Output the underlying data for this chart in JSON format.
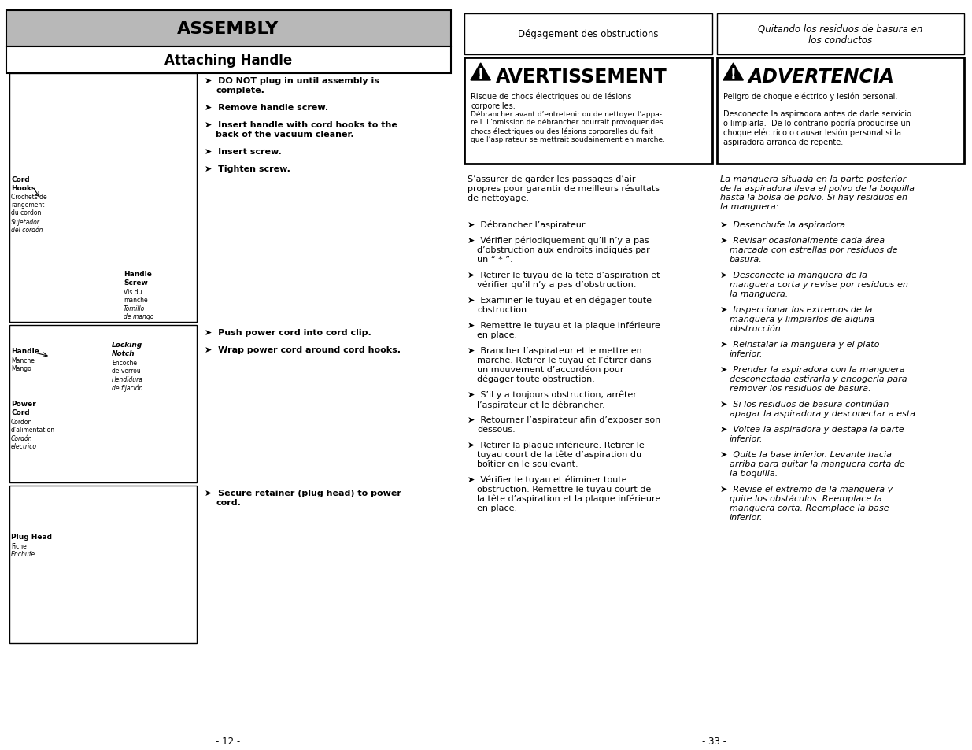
{
  "assembly_header_text": "ASSEMBLY",
  "assembly_header_bg": "#b8b8b8",
  "attaching_header_text": "Attaching Handle",
  "right_header_fr": "Dégagement des obstructions",
  "right_header_es": "Quitando los residuos de basura en\nlos conductos",
  "warning_fr_title": "AVERTISSEMENT",
  "warning_es_title": "ADVERTENCIA",
  "warning_fr_body1": "Risque de chocs électriques ou de lésions\ncorporelles.",
  "warning_fr_body2": "Débrancher avant d’entretenir ou de nettoyer l’appa-\nreil. L’omission de débrancher pourrait provoquer des\nchocs électriques ou des lésions corporelles du fait\nque l’aspirateur se mettrait soudainement en marche.",
  "warning_es_body1": "Peligro de choque eléctrico y lesión personal.",
  "warning_es_body2": "Desconecte la aspiradora antes de darle servicio\no limpiarla.  De lo contrario podría producirse un\nchoque eléctrico o causar lesión personal si la\naspiradora arranca de repente.",
  "fr_text_block": "S’assurer de garder les passages d’air\npropres pour garantir de meilleurs résultats\nde nettoyage.",
  "es_text_block": "La manguera situada en la parte posterior\nde la aspiradora lleva el polvo de la boquilla\nhasta la bolsa de polvo. Si hay residuos en\nla manguera:",
  "fr_steps": [
    "Débrancher l’aspirateur.",
    "Vérifier périodiquement qu’il n’y a pas\nd’obstruction aux endroits indiqués par\nun “ * ”.",
    "Retirer le tuyau de la tête d’aspiration et\nvérifier qu’il n’y a pas d’obstruction.",
    "Examiner le tuyau et en dégager toute\nobstruction.",
    "Remettre le tuyau et la plaque inférieure\nen place.",
    "Brancher l’aspirateur et le mettre en\nmarche. Retirer le tuyau et l’étirer dans\nun mouvement d’accordéon pour\ndégager toute obstruction.",
    "S’il y a toujours obstruction, arrêter\nl’aspirateur et le débrancher.",
    "Retourner l’aspirateur afin d’exposer son\ndessous.",
    "Retirer la plaque inférieure. Retirer le\ntuyau court de la tête d’aspiration du\nboîtier en le soulevant.",
    "Vérifier le tuyau et éliminer toute\nobstruction. Remettre le tuyau court de\nla tête d’aspiration et la plaque inférieure\nen place."
  ],
  "es_steps": [
    "Desenchufe la aspiradora.",
    "Revisar ocasionalmente cada área\nmarcada con estrellas por residuos de\nbasura.",
    "Desconecte la manguera de la\nmanguera corta y revise por residuos en\nla manguera.",
    "Inspeccionar los extremos de la\nmanguera y limpiarlos de alguna\nobstrucción.",
    "Reinstalar la manguera y el plato\ninferior.",
    "Prender la aspiradora con la manguera\ndesconectada estirarla y encogerla para\nremover los residuos de basura.",
    "Si los residuos de basura continúan\napagar la aspiradora y desconectar a esta.",
    "Voltea la aspiradora y destapa la parte\ninferior.",
    "Quite la base inferior. Levante hacia\narriba para quitar la manguera corta de\nla boquilla.",
    "Revise el extremo de la manguera y\nquite los obstáculos. Reemplace la\nmanguera corta. Reemplace la base\ninferior."
  ],
  "instr1": [
    [
      "DO NOT plug in until assembly is",
      "complete."
    ],
    [
      "Remove handle screw."
    ],
    [
      "Insert handle with cord hooks to the",
      "back of the vacuum cleaner."
    ],
    [
      "Insert screw."
    ],
    [
      "Tighten screw."
    ]
  ],
  "instr2": [
    [
      "Push power cord into cord clip."
    ],
    [
      "Wrap power cord around cord hooks."
    ]
  ],
  "instr3": [
    [
      "Secure retainer (plug head) to power",
      "cord."
    ]
  ],
  "page_num_left": "- 12 -",
  "page_num_right": "- 33 -"
}
